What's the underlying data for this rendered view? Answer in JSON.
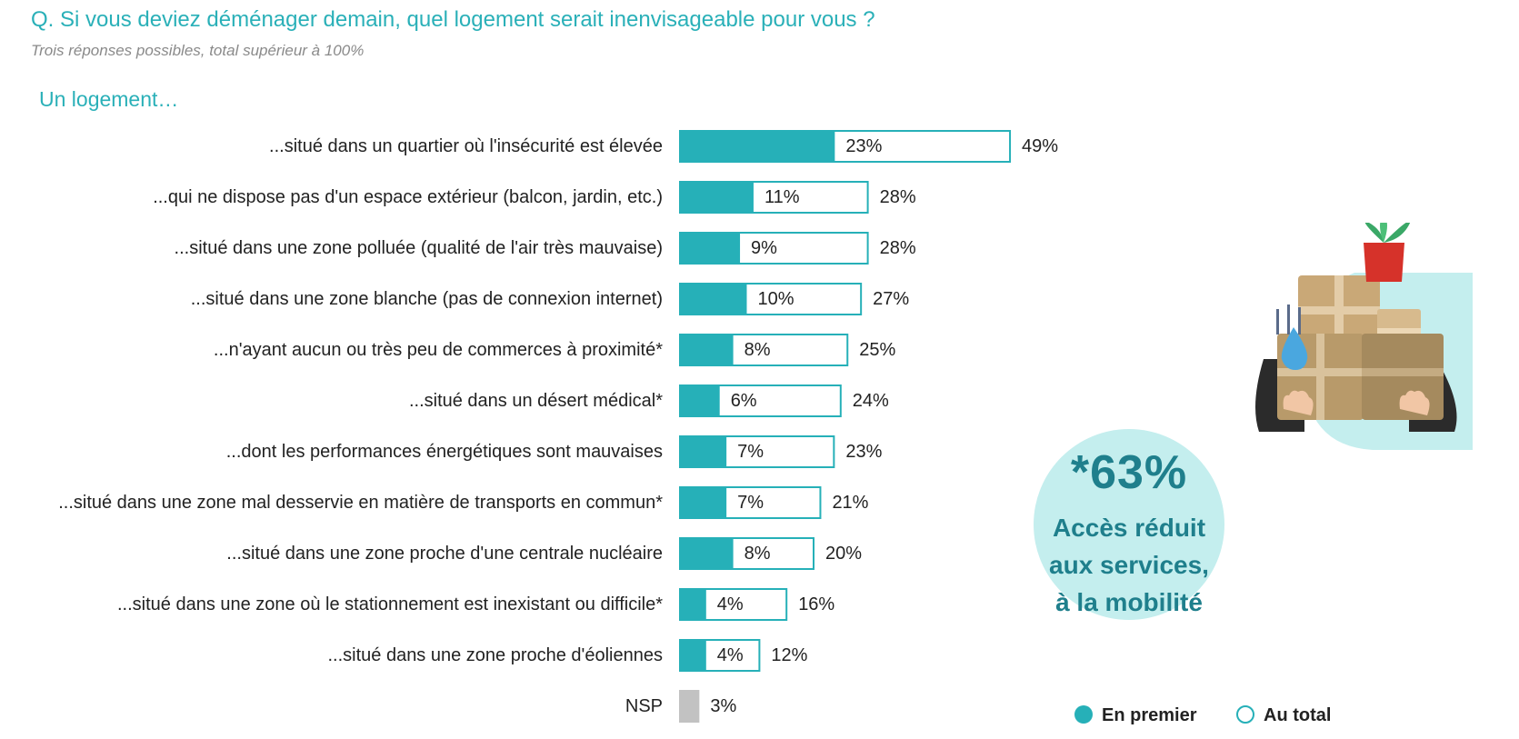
{
  "header": {
    "question": "Q. Si vous deviez déménager demain, quel logement serait inenvisageable pour vous ?",
    "subtitle": "Trois réponses possibles, total supérieur à 100%",
    "lead": "Un logement…"
  },
  "chart_data": {
    "type": "bar",
    "orientation": "horizontal",
    "categories": [
      "...situé dans un quartier où l'insécurité est élevée",
      "...qui ne dispose pas d'un espace extérieur (balcon, jardin, etc.)",
      "...situé dans une zone polluée (qualité de l'air très mauvaise)",
      "...situé dans une zone blanche (pas de connexion internet)",
      "...n'ayant aucun ou très peu de commerces à proximité*",
      "...situé dans un désert médical*",
      "...dont les performances énergétiques sont mauvaises",
      "...situé dans une zone mal desservie en matière de transports en commun*",
      "...situé dans une zone proche d'une centrale nucléaire",
      "...situé dans une zone où le stationnement est inexistant ou difficile*",
      "...situé dans une zone proche d'éoliennes",
      "NSP"
    ],
    "series": [
      {
        "name": "En premier",
        "values": [
          23,
          11,
          9,
          10,
          8,
          6,
          7,
          7,
          8,
          4,
          4,
          null
        ],
        "color": "#26b0b8"
      },
      {
        "name": "Au total",
        "values": [
          49,
          28,
          28,
          27,
          25,
          24,
          23,
          21,
          20,
          16,
          12,
          3
        ],
        "color": "#26b0b8"
      }
    ],
    "nsp_color": "#c2c2c2",
    "unit": "%"
  },
  "callout": {
    "percent": "*63%",
    "lines": [
      "Accès réduit",
      "aux services,",
      "à la mobilité"
    ]
  },
  "legend": {
    "first": "En premier",
    "total": "Au total"
  },
  "illustration": {
    "icon": "moving-boxes-icon"
  }
}
